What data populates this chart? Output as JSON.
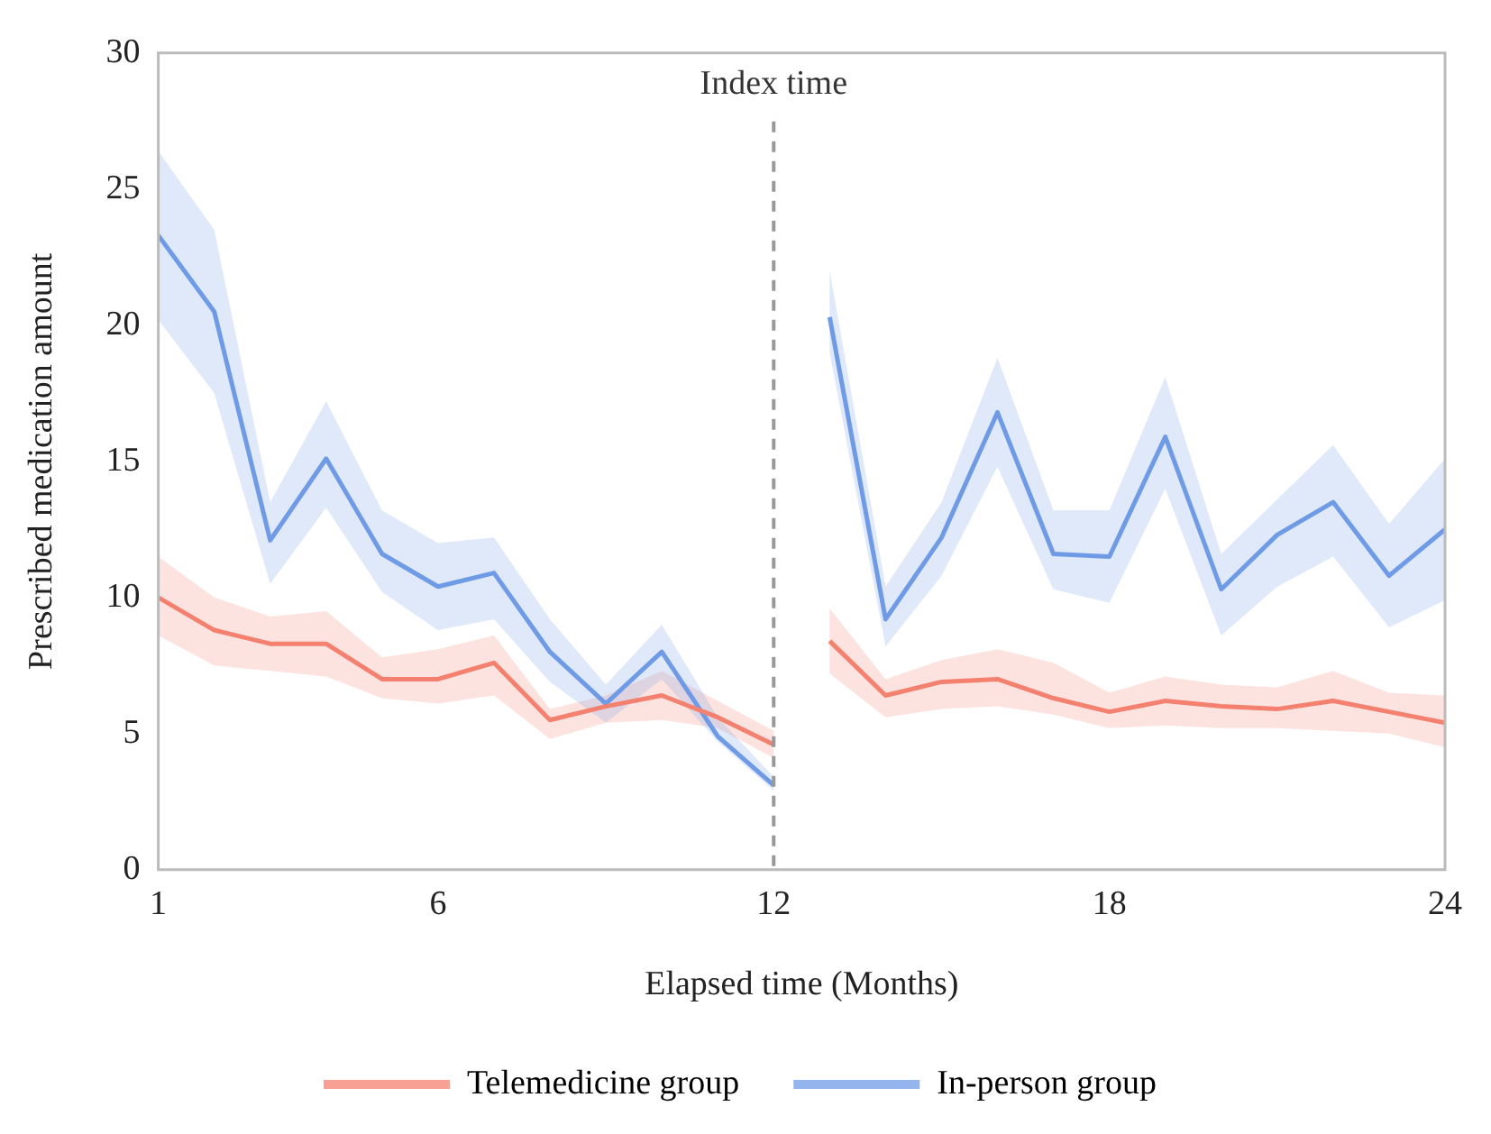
{
  "chart_data": {
    "type": "line",
    "xlabel": "Elapsed time (Months)",
    "ylabel": "Prescribed medication amount",
    "x": [
      1,
      2,
      3,
      4,
      5,
      6,
      7,
      8,
      9,
      10,
      11,
      12,
      12.5,
      13,
      14,
      15,
      16,
      17,
      18,
      19,
      20,
      21,
      22,
      23,
      24
    ],
    "series": [
      {
        "name": "Telemedicine group",
        "color": "#f4806f",
        "values": [
          10.0,
          8.8,
          8.3,
          8.3,
          7.0,
          7.0,
          7.6,
          5.5,
          6.0,
          6.4,
          5.6,
          4.6,
          null,
          8.4,
          6.4,
          6.9,
          7.0,
          6.3,
          5.8,
          6.2,
          6.0,
          5.9,
          6.2,
          5.8,
          5.4
        ],
        "lower": [
          8.6,
          7.5,
          7.3,
          7.1,
          6.3,
          6.1,
          6.4,
          4.8,
          5.4,
          5.5,
          5.2,
          4.1,
          null,
          7.2,
          5.6,
          5.9,
          6.0,
          5.7,
          5.2,
          5.3,
          5.2,
          5.2,
          5.1,
          5.0,
          4.5
        ],
        "upper": [
          11.5,
          10.0,
          9.3,
          9.5,
          7.8,
          8.1,
          8.6,
          5.9,
          6.4,
          7.3,
          6.2,
          5.1,
          null,
          9.6,
          7.0,
          7.7,
          8.1,
          7.6,
          6.5,
          7.1,
          6.8,
          6.7,
          7.3,
          6.5,
          6.4
        ]
      },
      {
        "name": "In-person group",
        "color": "#6f9be6",
        "values": [
          23.3,
          20.5,
          12.1,
          15.1,
          11.6,
          10.4,
          10.9,
          8.0,
          6.1,
          8.0,
          4.9,
          3.1,
          null,
          20.3,
          9.2,
          12.2,
          16.8,
          11.6,
          11.5,
          15.9,
          10.3,
          12.3,
          13.5,
          10.8,
          12.5
        ],
        "lower": [
          20.2,
          17.5,
          10.5,
          13.3,
          10.2,
          8.8,
          9.2,
          6.9,
          5.4,
          7.0,
          4.7,
          2.9,
          null,
          19.0,
          8.2,
          10.8,
          14.8,
          10.3,
          9.8,
          14.0,
          8.6,
          10.4,
          11.5,
          8.9,
          9.9
        ],
        "upper": [
          26.4,
          23.5,
          13.5,
          17.2,
          13.2,
          12.0,
          12.2,
          9.2,
          6.8,
          9.0,
          5.6,
          3.4,
          null,
          22.0,
          10.4,
          13.5,
          18.8,
          13.2,
          13.2,
          18.1,
          11.6,
          13.6,
          15.6,
          12.7,
          15.1
        ]
      }
    ],
    "xlim": [
      1,
      24
    ],
    "xticks": [
      1,
      6,
      12,
      18,
      24
    ],
    "ylim": [
      0,
      30
    ],
    "yticks": [
      0,
      5,
      10,
      15,
      20,
      25,
      30
    ],
    "ref_lines": [
      {
        "axis": "x",
        "value": 12,
        "label": "Index time",
        "color": "#999999",
        "line_style": "dashed"
      }
    ],
    "grid": false,
    "legend": "bottom",
    "marker": "none",
    "line_style": "solid"
  }
}
